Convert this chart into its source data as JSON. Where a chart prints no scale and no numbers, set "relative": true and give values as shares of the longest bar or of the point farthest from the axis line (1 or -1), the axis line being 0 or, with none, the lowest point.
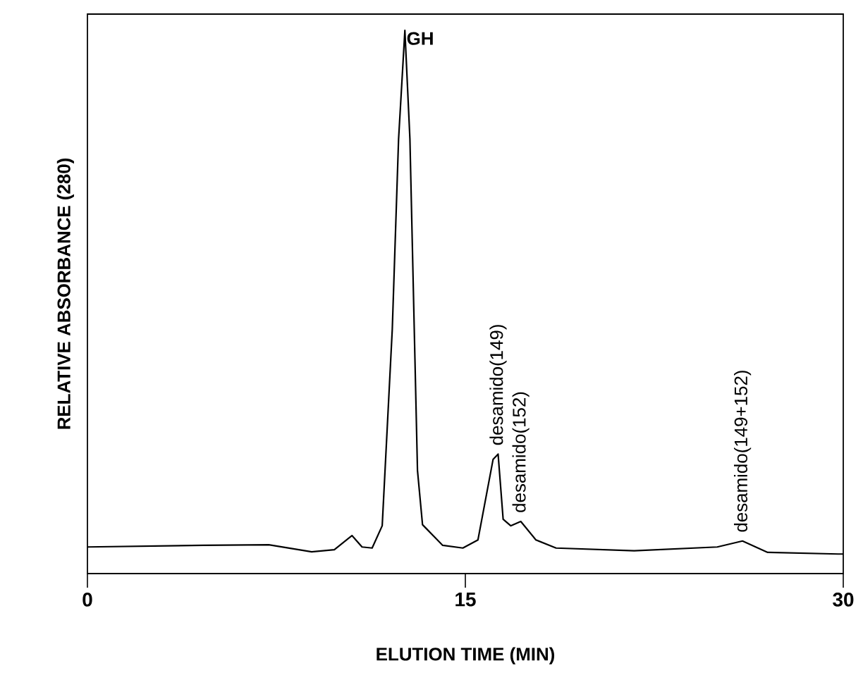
{
  "chart_data": {
    "type": "line",
    "relative": true,
    "xlabel": "ELUTION TIME (MIN)",
    "ylabel": "RELATIVE ABSORBANCE (280)",
    "xlim": [
      0,
      30
    ],
    "xticks": [
      0,
      15,
      30
    ],
    "color": "#000000",
    "marker": "none",
    "line_style": "solid",
    "x": [
      0,
      4.6,
      7.2,
      8.9,
      9.8,
      10.5,
      10.9,
      11.3,
      11.7,
      12.1,
      12.35,
      12.6,
      12.8,
      13.1,
      13.3,
      14.1,
      14.9,
      15.5,
      16.1,
      16.3,
      16.5,
      16.8,
      17.2,
      17.8,
      18.6,
      21.7,
      25.0,
      26.0,
      27.0,
      29.8,
      30
    ],
    "values": [
      0.049,
      0.052,
      0.053,
      0.04,
      0.044,
      0.07,
      0.049,
      0.047,
      0.088,
      0.45,
      0.8,
      1.0,
      0.8,
      0.19,
      0.09,
      0.052,
      0.047,
      0.062,
      0.21,
      0.22,
      0.1,
      0.088,
      0.096,
      0.062,
      0.047,
      0.042,
      0.049,
      0.06,
      0.039,
      0.036,
      0.036
    ],
    "annotations": [
      {
        "text": "GH",
        "x": 12.6,
        "y": 1.0
      },
      {
        "text": "desamido(149)",
        "x": 16.3,
        "y": 0.22
      },
      {
        "text": "desamido(152)",
        "x": 17.2,
        "y": 0.096
      },
      {
        "text": "desamido(149+152)",
        "x": 26.0,
        "y": 0.06
      }
    ]
  }
}
